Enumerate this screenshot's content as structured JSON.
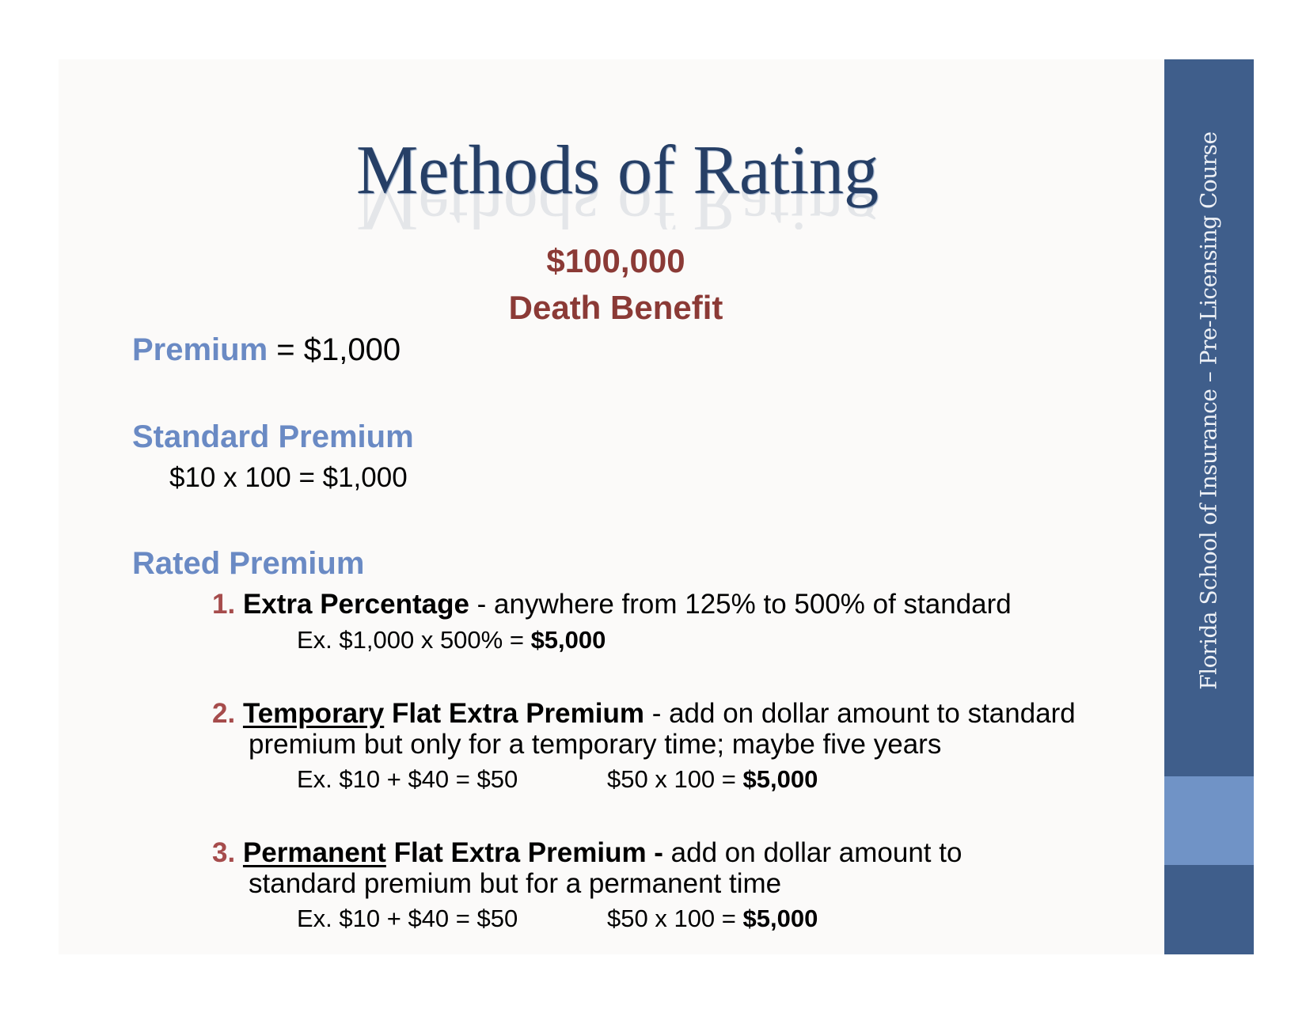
{
  "title": "Methods of Rating",
  "death_benefit": {
    "amount": "$100,000",
    "label": "Death Benefit"
  },
  "premium": {
    "label": "Premium",
    "value": "= $1,000"
  },
  "standard_premium": {
    "label": "Standard Premium",
    "formula": "$10 x 100 = $1,000"
  },
  "rated_premium": {
    "label": "Rated Premium",
    "items": [
      {
        "num": "1.",
        "term": "Extra Percentage",
        "desc": " - anywhere from 125% to 500% of standard",
        "ex": "Ex. $1,000 x 500% = ",
        "ex_result": "$5,000"
      },
      {
        "num": "2.",
        "term_underlined": "Temporary",
        "term_rest": " Flat Extra Premium",
        "desc": " - add on dollar amount to standard",
        "desc2": "premium but only for a temporary time; maybe five years",
        "ex": "Ex. $10 + $40 = $50",
        "ex2": "$50 x 100 = ",
        "ex2_result": "$5,000"
      },
      {
        "num": "3.",
        "term_underlined": "Permanent",
        "term_rest": " Flat Extra Premium -",
        "desc": " add on dollar amount to",
        "desc2": "standard premium but for a permanent time",
        "ex": "Ex. $10 + $40 = $50",
        "ex2": "$50 x 100 = ",
        "ex2_result": "$5,000"
      }
    ]
  },
  "sidebar": {
    "text": "Florida School of Insurance – Pre-Licensing Course"
  },
  "colors": {
    "sidebar": "#3f5e8b",
    "sidebar_accent": "#7093c6",
    "heading_blue": "#6a8ac4",
    "red": "#8b3a36",
    "title": "#263f66"
  }
}
